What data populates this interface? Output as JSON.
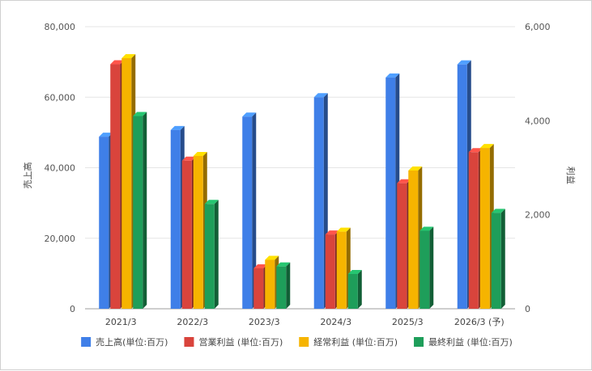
{
  "chart_data": {
    "type": "bar",
    "style": "3d",
    "categories": [
      "2021/3",
      "2022/3",
      "2023/3",
      "2024/3",
      "2025/3",
      "2026/3 (予)"
    ],
    "left_axis": {
      "title": "売上高",
      "ylim": [
        0,
        80000
      ],
      "ticks": [
        "0",
        "20,000",
        "40,000",
        "60,000",
        "80,000"
      ]
    },
    "right_axis": {
      "title": "利益",
      "ylim": [
        0,
        6000
      ],
      "ticks": [
        "0",
        "2,000",
        "4,000",
        "6,000"
      ]
    },
    "grid": true,
    "legend_position": "bottom",
    "series": [
      {
        "name": "売上高(単位:百万)",
        "axis": "left",
        "color": "#3f7fe8",
        "values": [
          48800,
          50700,
          54500,
          60000,
          65600,
          69300
        ]
      },
      {
        "name": "営業利益 (単位:百万)",
        "axis": "right",
        "color": "#d9443c",
        "values": [
          5200,
          3150,
          860,
          1580,
          2670,
          3330
        ]
      },
      {
        "name": "経常利益 (単位:百万)",
        "axis": "right",
        "color": "#f6b400",
        "values": [
          5330,
          3250,
          1040,
          1640,
          2940,
          3420
        ]
      },
      {
        "name": "最終利益 (単位:百万)",
        "axis": "right",
        "color": "#1e9e5a",
        "values": [
          4100,
          2230,
          900,
          740,
          1660,
          2040
        ]
      }
    ]
  }
}
